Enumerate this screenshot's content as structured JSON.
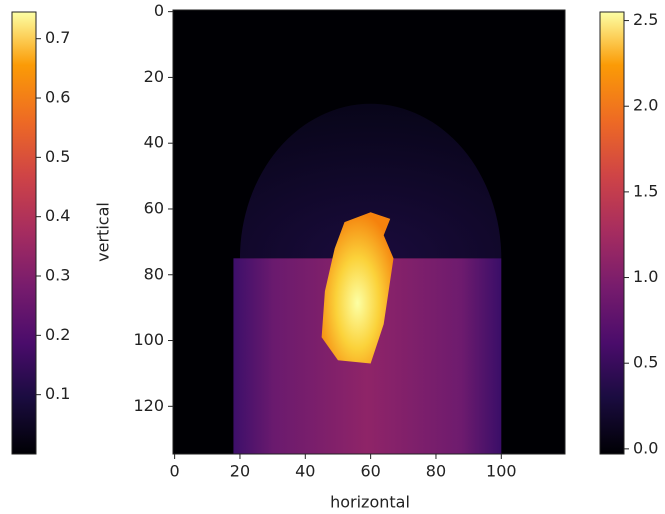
{
  "chart_data": {
    "type": "heatmap",
    "xlabel": "horizontal",
    "ylabel": "vertical",
    "xlim": [
      -0.5,
      119.5
    ],
    "ylim": [
      134.5,
      -0.5
    ],
    "xticks": [
      0,
      20,
      40,
      60,
      80,
      100
    ],
    "yticks": [
      0,
      20,
      40,
      60,
      80,
      100,
      120
    ],
    "colorbars": [
      {
        "clim": [
          0,
          0.745
        ],
        "ticks": [
          0.1,
          0.2,
          0.3,
          0.4,
          0.5,
          0.6,
          0.7
        ]
      },
      {
        "clim": [
          -0.03,
          2.55
        ],
        "ticks": [
          {
            "value": 0,
            "label": "0.0"
          },
          0.5,
          {
            "value": 1,
            "label": "1.0"
          },
          1.5,
          {
            "value": 2,
            "label": "2.0"
          },
          2.5
        ]
      }
    ]
  }
}
